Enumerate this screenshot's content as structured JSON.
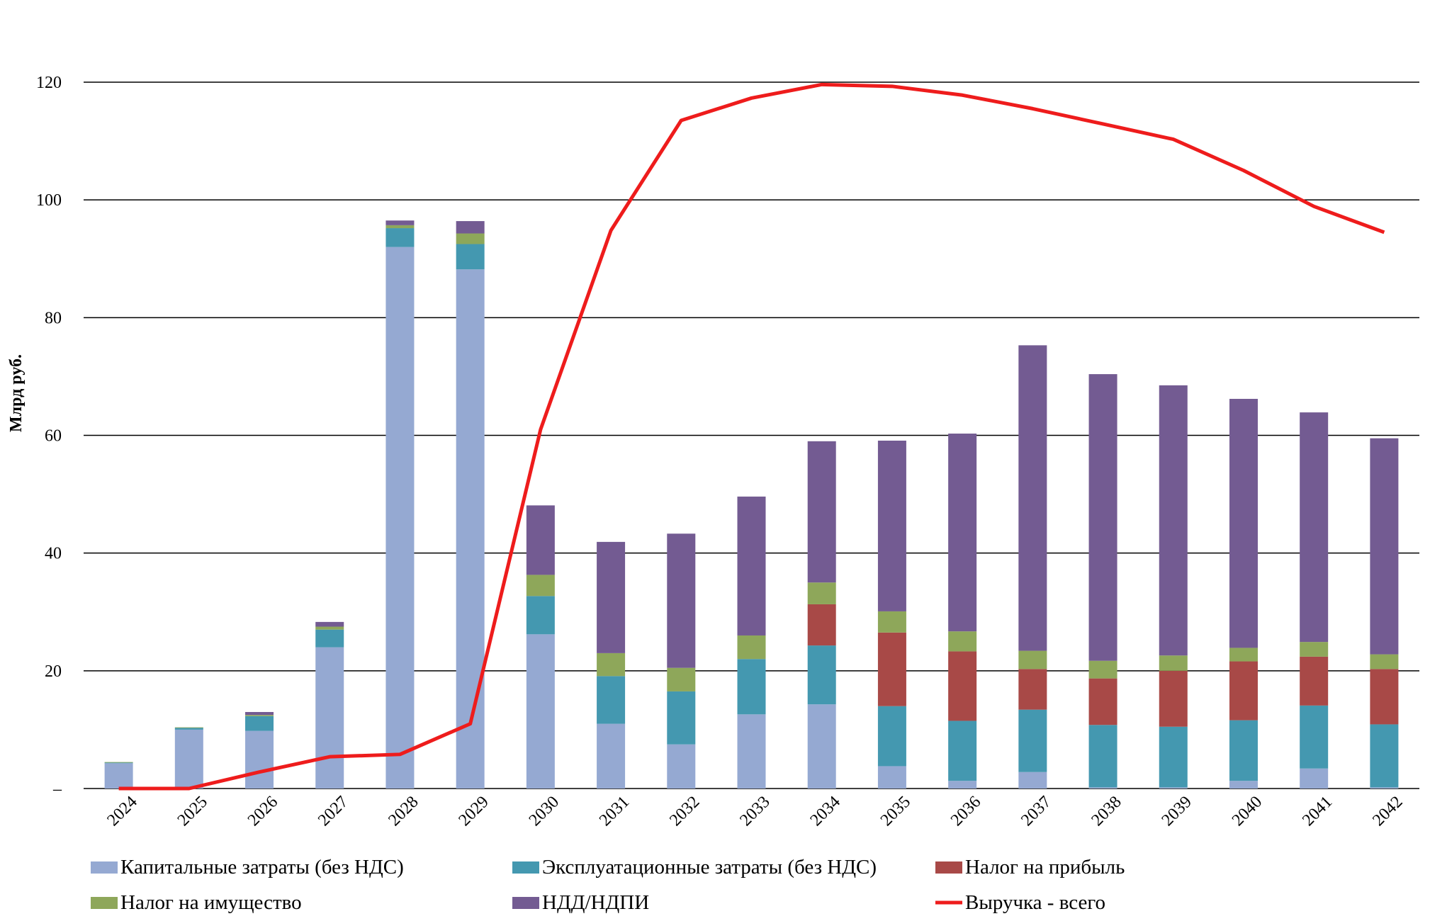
{
  "chart_data": {
    "type": "bar",
    "stacked": true,
    "ylabel": "Млрд руб.",
    "yticks": [
      "–",
      "20",
      "40",
      "60",
      "80",
      "100",
      "120"
    ],
    "ylim": [
      0,
      125
    ],
    "grid": true,
    "legend_position": "bottom",
    "categories": [
      "2024",
      "2025",
      "2026",
      "2027",
      "2028",
      "2029",
      "2030",
      "2031",
      "2032",
      "2033",
      "2034",
      "2035",
      "2036",
      "2037",
      "2038",
      "2039",
      "2040",
      "2041",
      "2042"
    ],
    "series": [
      {
        "name": "Капитальные затраты (без НДС)",
        "color": "#95a9d2",
        "values": [
          4.3,
          10.0,
          9.8,
          24.0,
          92.0,
          88.2,
          26.2,
          11.0,
          7.5,
          12.6,
          14.3,
          3.8,
          1.3,
          2.8,
          0.2,
          0.2,
          1.3,
          3.4,
          0.2
        ]
      },
      {
        "name": "Эксплуатационные затраты (без НДС)",
        "color": "#4498b0",
        "values": [
          0.1,
          0.3,
          2.5,
          3.0,
          3.2,
          4.3,
          6.5,
          8.1,
          9.0,
          9.4,
          10.0,
          10.2,
          10.2,
          10.6,
          10.6,
          10.3,
          10.3,
          10.7,
          10.7
        ]
      },
      {
        "name": "Налог на прибыль",
        "color": "#a84947",
        "values": [
          0,
          0,
          0,
          0,
          0,
          0,
          0,
          0,
          0,
          0,
          7.0,
          12.5,
          11.8,
          6.9,
          7.9,
          9.5,
          10.0,
          8.3,
          9.4
        ]
      },
      {
        "name": "Налог на имущество",
        "color": "#8ea75a",
        "values": [
          0.1,
          0.1,
          0.2,
          0.5,
          0.5,
          1.8,
          3.6,
          3.9,
          4.0,
          4.0,
          3.7,
          3.6,
          3.4,
          3.1,
          3.0,
          2.6,
          2.3,
          2.5,
          2.5
        ]
      },
      {
        "name": "НДД/НДПИ",
        "color": "#735b92",
        "values": [
          0,
          0,
          0.5,
          0.8,
          0.8,
          2.1,
          11.8,
          18.9,
          22.8,
          23.6,
          24.0,
          29.0,
          33.6,
          51.9,
          48.7,
          45.9,
          42.3,
          39.0,
          36.7
        ]
      }
    ],
    "line": {
      "name": "Выручка - всего",
      "color": "#ee1c1c",
      "values": [
        0,
        0,
        2.8,
        5.4,
        5.8,
        11.0,
        61.0,
        94.8,
        113.5,
        117.3,
        119.6,
        119.3,
        117.8,
        115.5,
        112.9,
        110.3,
        105.0,
        98.9,
        94.5
      ]
    }
  }
}
